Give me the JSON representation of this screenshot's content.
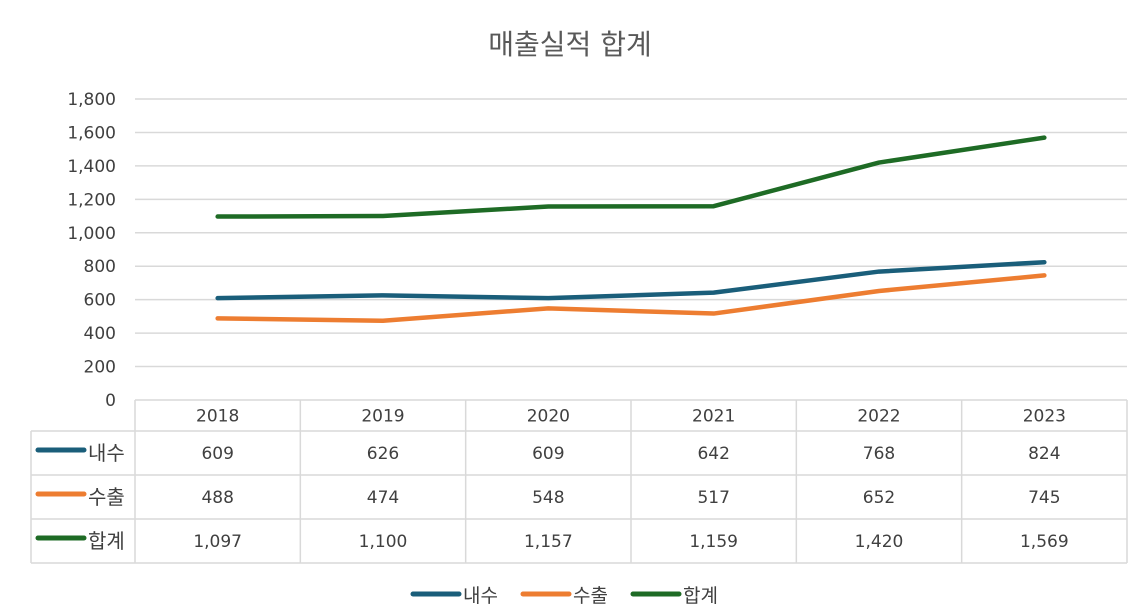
{
  "chart_data": {
    "type": "line",
    "title": "매출실적 합계",
    "categories": [
      "2018",
      "2019",
      "2020",
      "2021",
      "2022",
      "2023"
    ],
    "ylim": [
      0,
      1800
    ],
    "yticks": [
      0,
      200,
      400,
      600,
      800,
      1000,
      1200,
      1400,
      1600,
      1800
    ],
    "ytick_labels": [
      "0",
      "200",
      "400",
      "600",
      "800",
      "1,000",
      "1,200",
      "1,400",
      "1,600",
      "1,800"
    ],
    "grid": true,
    "legend": "bottom",
    "data_table": true,
    "series": [
      {
        "name": "내수",
        "color": "#1a5e7a",
        "values": [
          609,
          626,
          609,
          642,
          768,
          824
        ],
        "labels": [
          "609",
          "626",
          "609",
          "642",
          "768",
          "824"
        ]
      },
      {
        "name": "수출",
        "color": "#ed7d31",
        "values": [
          488,
          474,
          548,
          517,
          652,
          745
        ],
        "labels": [
          "488",
          "474",
          "548",
          "517",
          "652",
          "745"
        ]
      },
      {
        "name": "합계",
        "color": "#1e6b25",
        "values": [
          1097,
          1100,
          1157,
          1159,
          1420,
          1569
        ],
        "labels": [
          "1,097",
          "1,100",
          "1,157",
          "1,159",
          "1,420",
          "1,569"
        ]
      }
    ]
  }
}
